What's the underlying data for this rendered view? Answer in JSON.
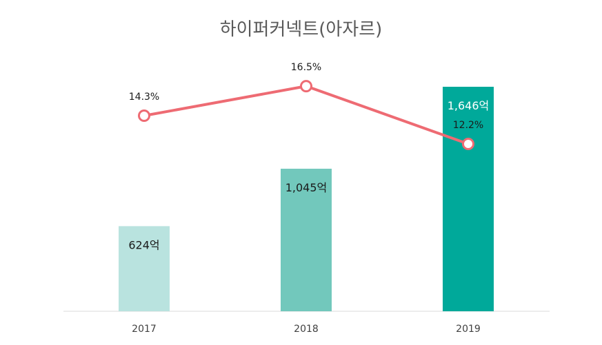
{
  "chart_data": {
    "type": "bar",
    "title": "하이퍼커넥트(아자르)",
    "categories": [
      "2017",
      "2018",
      "2019"
    ],
    "series": [
      {
        "values": [
          624,
          1045,
          1646
        ],
        "labels": [
          "624억",
          "1,045억",
          "1,646억"
        ],
        "colors": [
          "#b9e3df",
          "#72c8bc",
          "#00a99a"
        ]
      },
      {
        "type": "line",
        "values": [
          14.3,
          16.5,
          12.2
        ],
        "labels": [
          "14.3%",
          "16.5%",
          "12.2%"
        ],
        "color": "#ee6b73"
      }
    ]
  }
}
